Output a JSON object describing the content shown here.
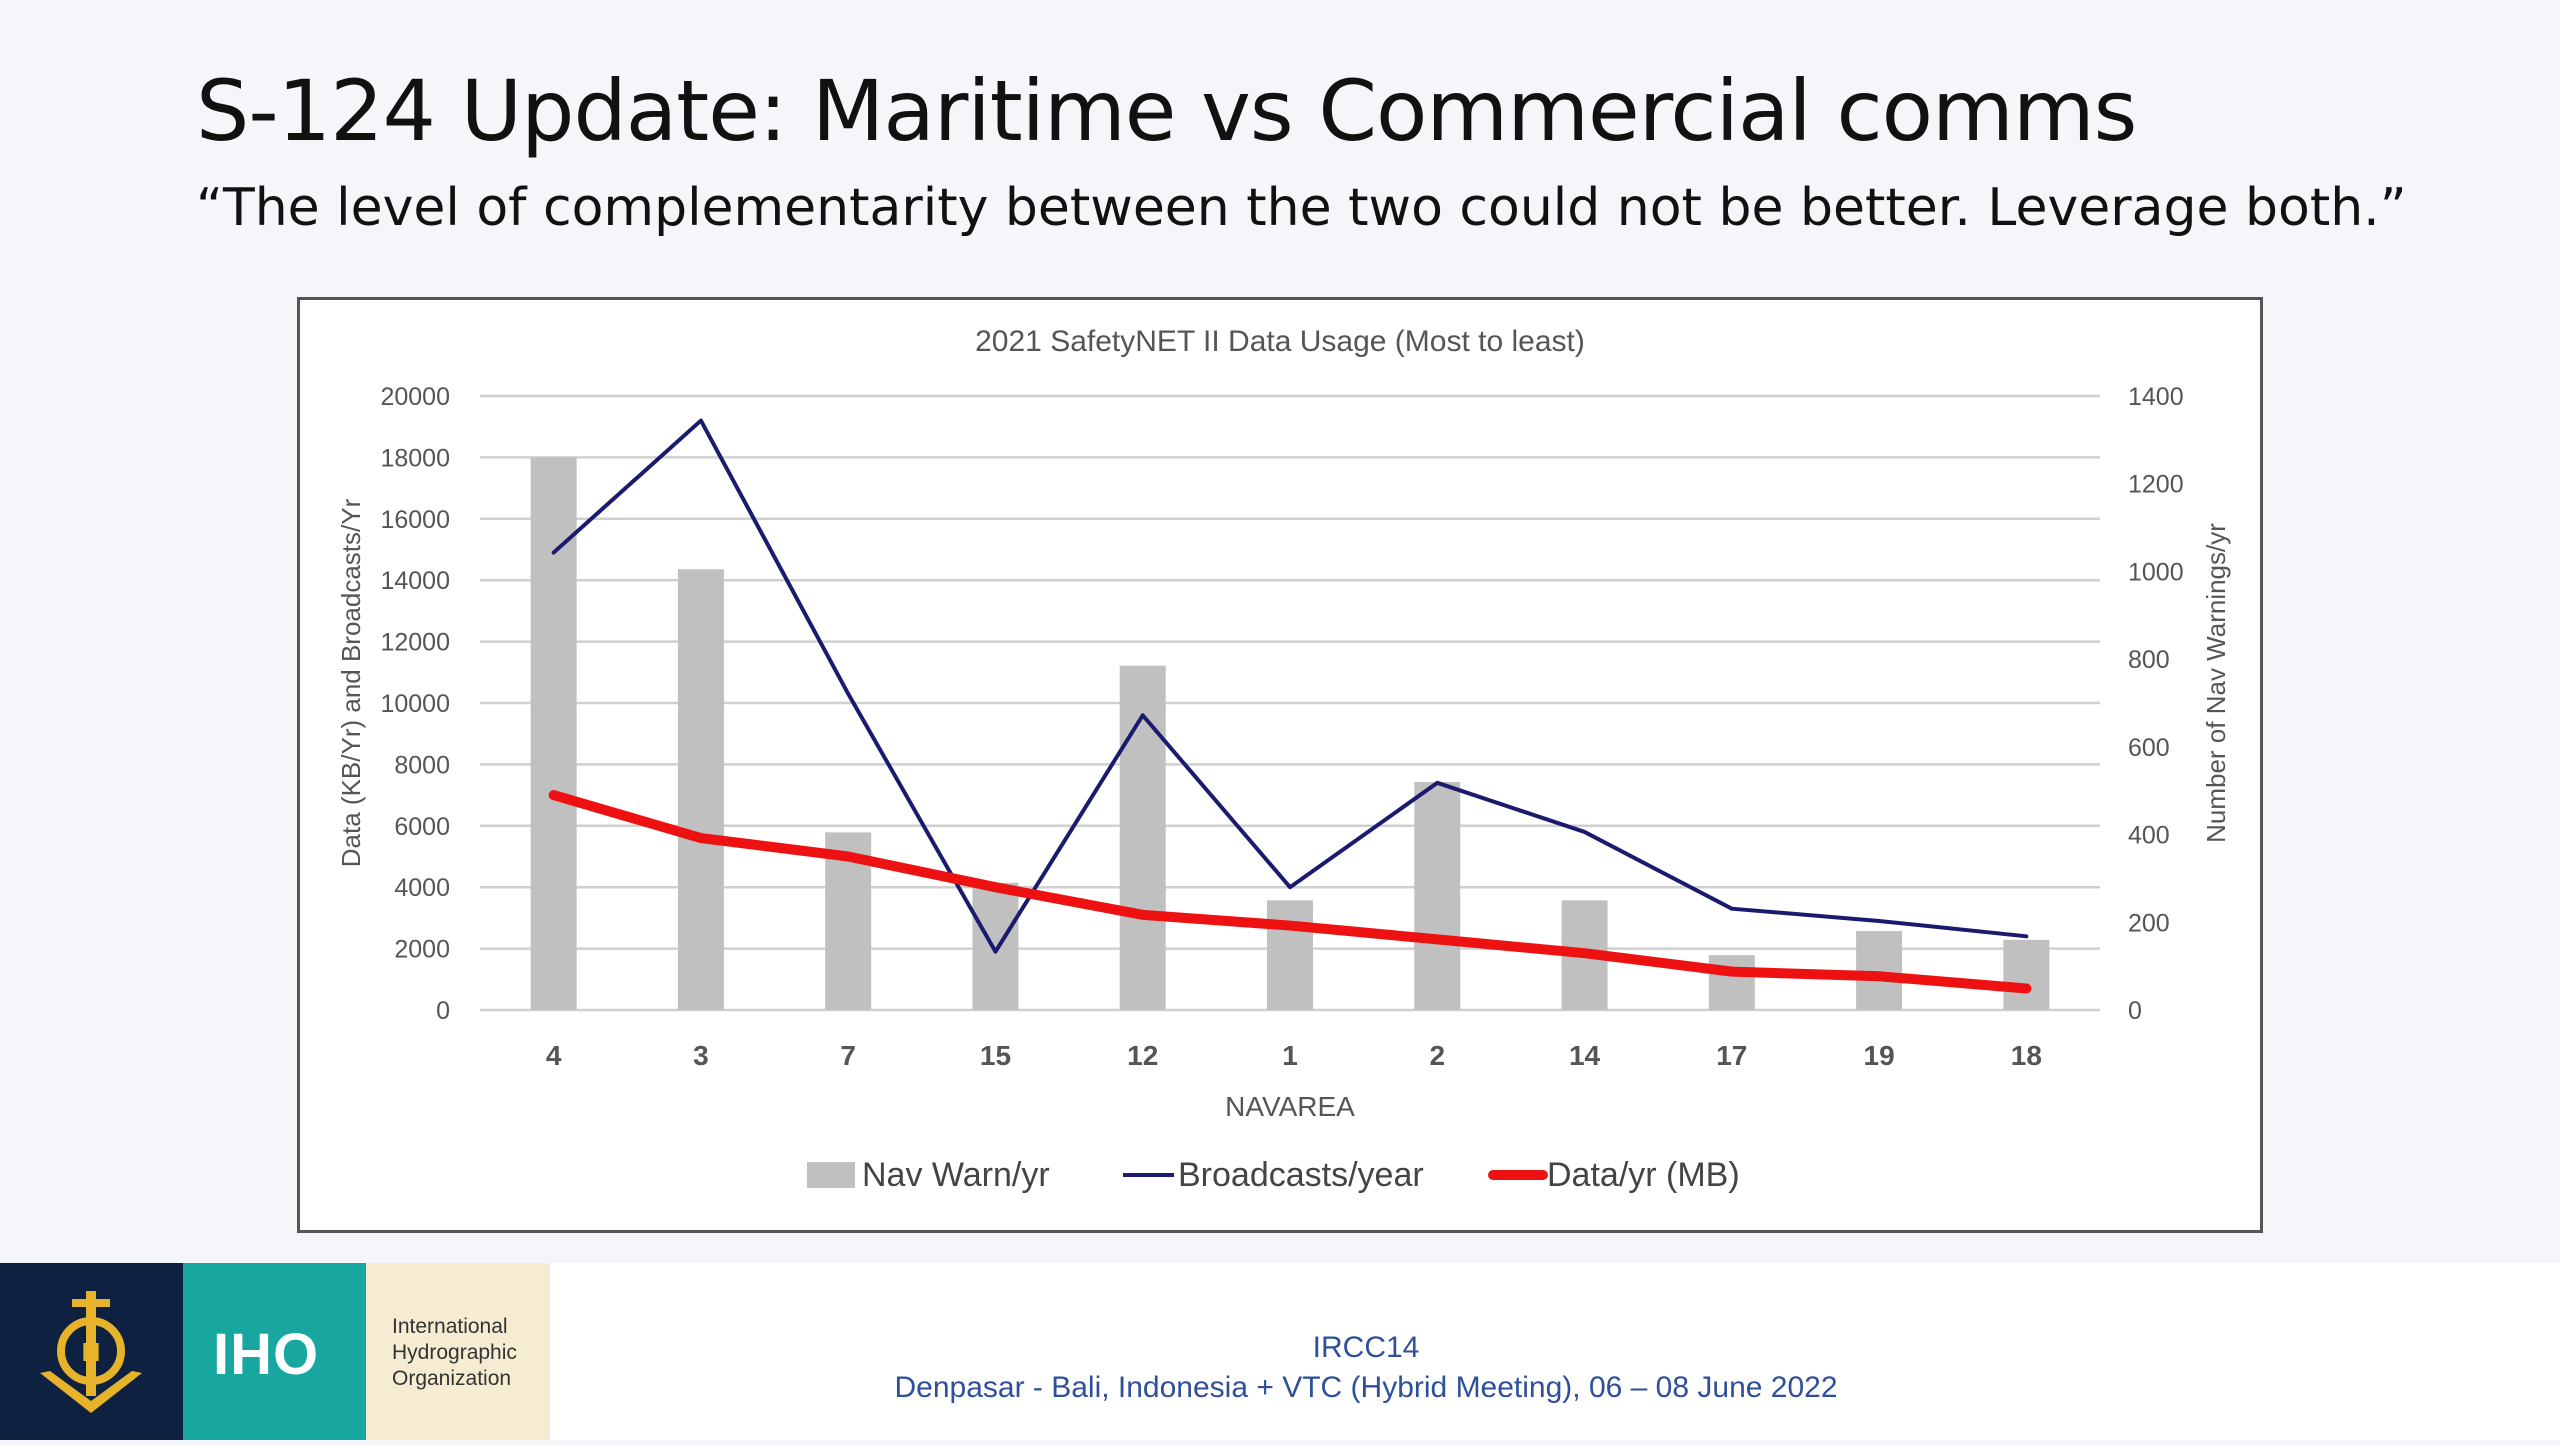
{
  "slide": {
    "title": "S-124 Update: Maritime vs Commercial comms",
    "subtitle": "“The level of complementarity between the two could not be better.  Leverage both.”"
  },
  "chart_data": {
    "type": "bar",
    "title": "2021 SafetyNET II Data Usage (Most to least)",
    "xlabel": "NAVAREA",
    "ylabel": "Data (KB/Yr) and Broadcasts/Yr",
    "y2label": "Number of Nav Warnings/yr",
    "categories": [
      "4",
      "3",
      "7",
      "15",
      "12",
      "1",
      "2",
      "14",
      "17",
      "19",
      "18"
    ],
    "ylim": [
      0,
      20000
    ],
    "y2lim": [
      0,
      1400
    ],
    "yticks": [
      "0",
      "2000",
      "4000",
      "6000",
      "8000",
      "10000",
      "12000",
      "14000",
      "16000",
      "18000",
      "20000"
    ],
    "y2ticks": [
      "0",
      "200",
      "400",
      "600",
      "800",
      "1000",
      "1200",
      "1400"
    ],
    "grid": true,
    "legend_position": "bottom",
    "series": [
      {
        "name": "Nav Warn/yr",
        "type": "bar",
        "axis": "secondary",
        "color": "#c0c0c0",
        "values": [
          1260,
          1005,
          405,
          290,
          785,
          250,
          520,
          250,
          125,
          180,
          160
        ]
      },
      {
        "name": "Broadcasts/year",
        "type": "line",
        "axis": "primary",
        "color": "#1a1a6e",
        "values": [
          14900,
          19200,
          10300,
          1900,
          9600,
          4000,
          7400,
          5800,
          3300,
          2900,
          2400
        ]
      },
      {
        "name": "Data/yr (MB)",
        "type": "line",
        "axis": "primary",
        "color": "#ee1111",
        "values": [
          7000,
          5600,
          5000,
          4000,
          3100,
          2750,
          2300,
          1850,
          1250,
          1100,
          700
        ]
      }
    ]
  },
  "footer": {
    "logo_text": "IHO",
    "org_name": [
      "International",
      "Hydrographic",
      "Organization"
    ],
    "meeting": "IRCC14",
    "location": "Denpasar - Bali, Indonesia + VTC (Hybrid Meeting), 06 – 08 June 2022"
  }
}
